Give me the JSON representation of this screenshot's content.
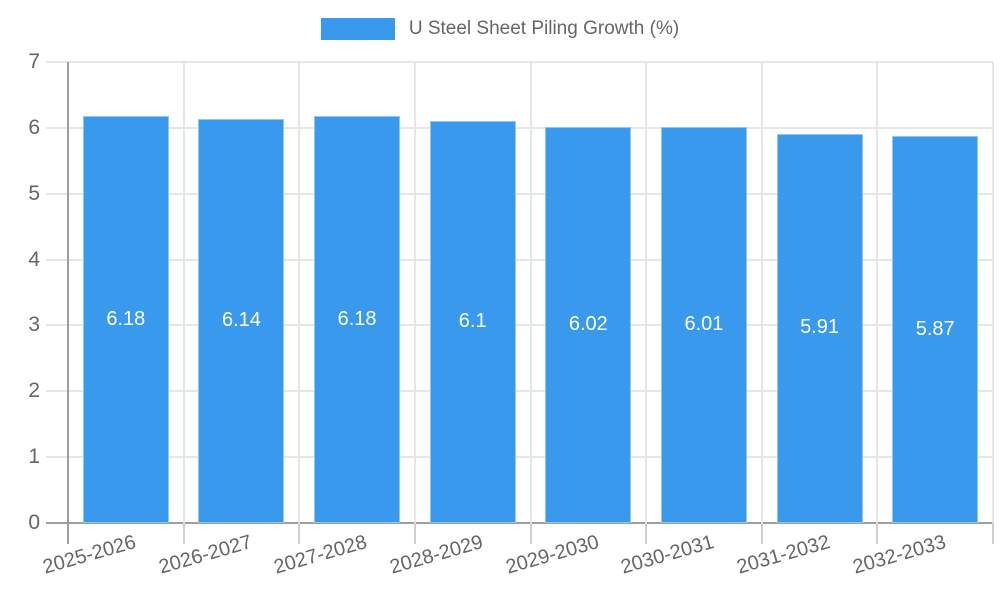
{
  "legend": {
    "label": "U Steel Sheet Piling Growth (%)"
  },
  "chart_data": {
    "type": "bar",
    "title": "U Steel Sheet Piling Growth (%)",
    "categories": [
      "2025-2026",
      "2026-2027",
      "2027-2028",
      "2028-2029",
      "2029-2030",
      "2030-2031",
      "2031-2032",
      "2032-2033"
    ],
    "values": [
      6.18,
      6.14,
      6.18,
      6.1,
      6.02,
      6.01,
      5.91,
      5.87
    ],
    "value_labels": [
      "6.18",
      "6.14",
      "6.18",
      "6.1",
      "6.02",
      "6.01",
      "5.91",
      "5.87"
    ],
    "xlabel": "",
    "ylabel": "",
    "ylim": [
      0,
      7
    ],
    "yticks": [
      0,
      1,
      2,
      3,
      4,
      5,
      6,
      7
    ],
    "grid": true,
    "legend_position": "top",
    "colors": {
      "bar": "#3999EC",
      "grid": "#E6E6E6",
      "axis": "#9E9E9E",
      "tick_mark": "#CFCFCF",
      "tick_text": "#666666",
      "value_label": "#FFFFFF"
    }
  }
}
